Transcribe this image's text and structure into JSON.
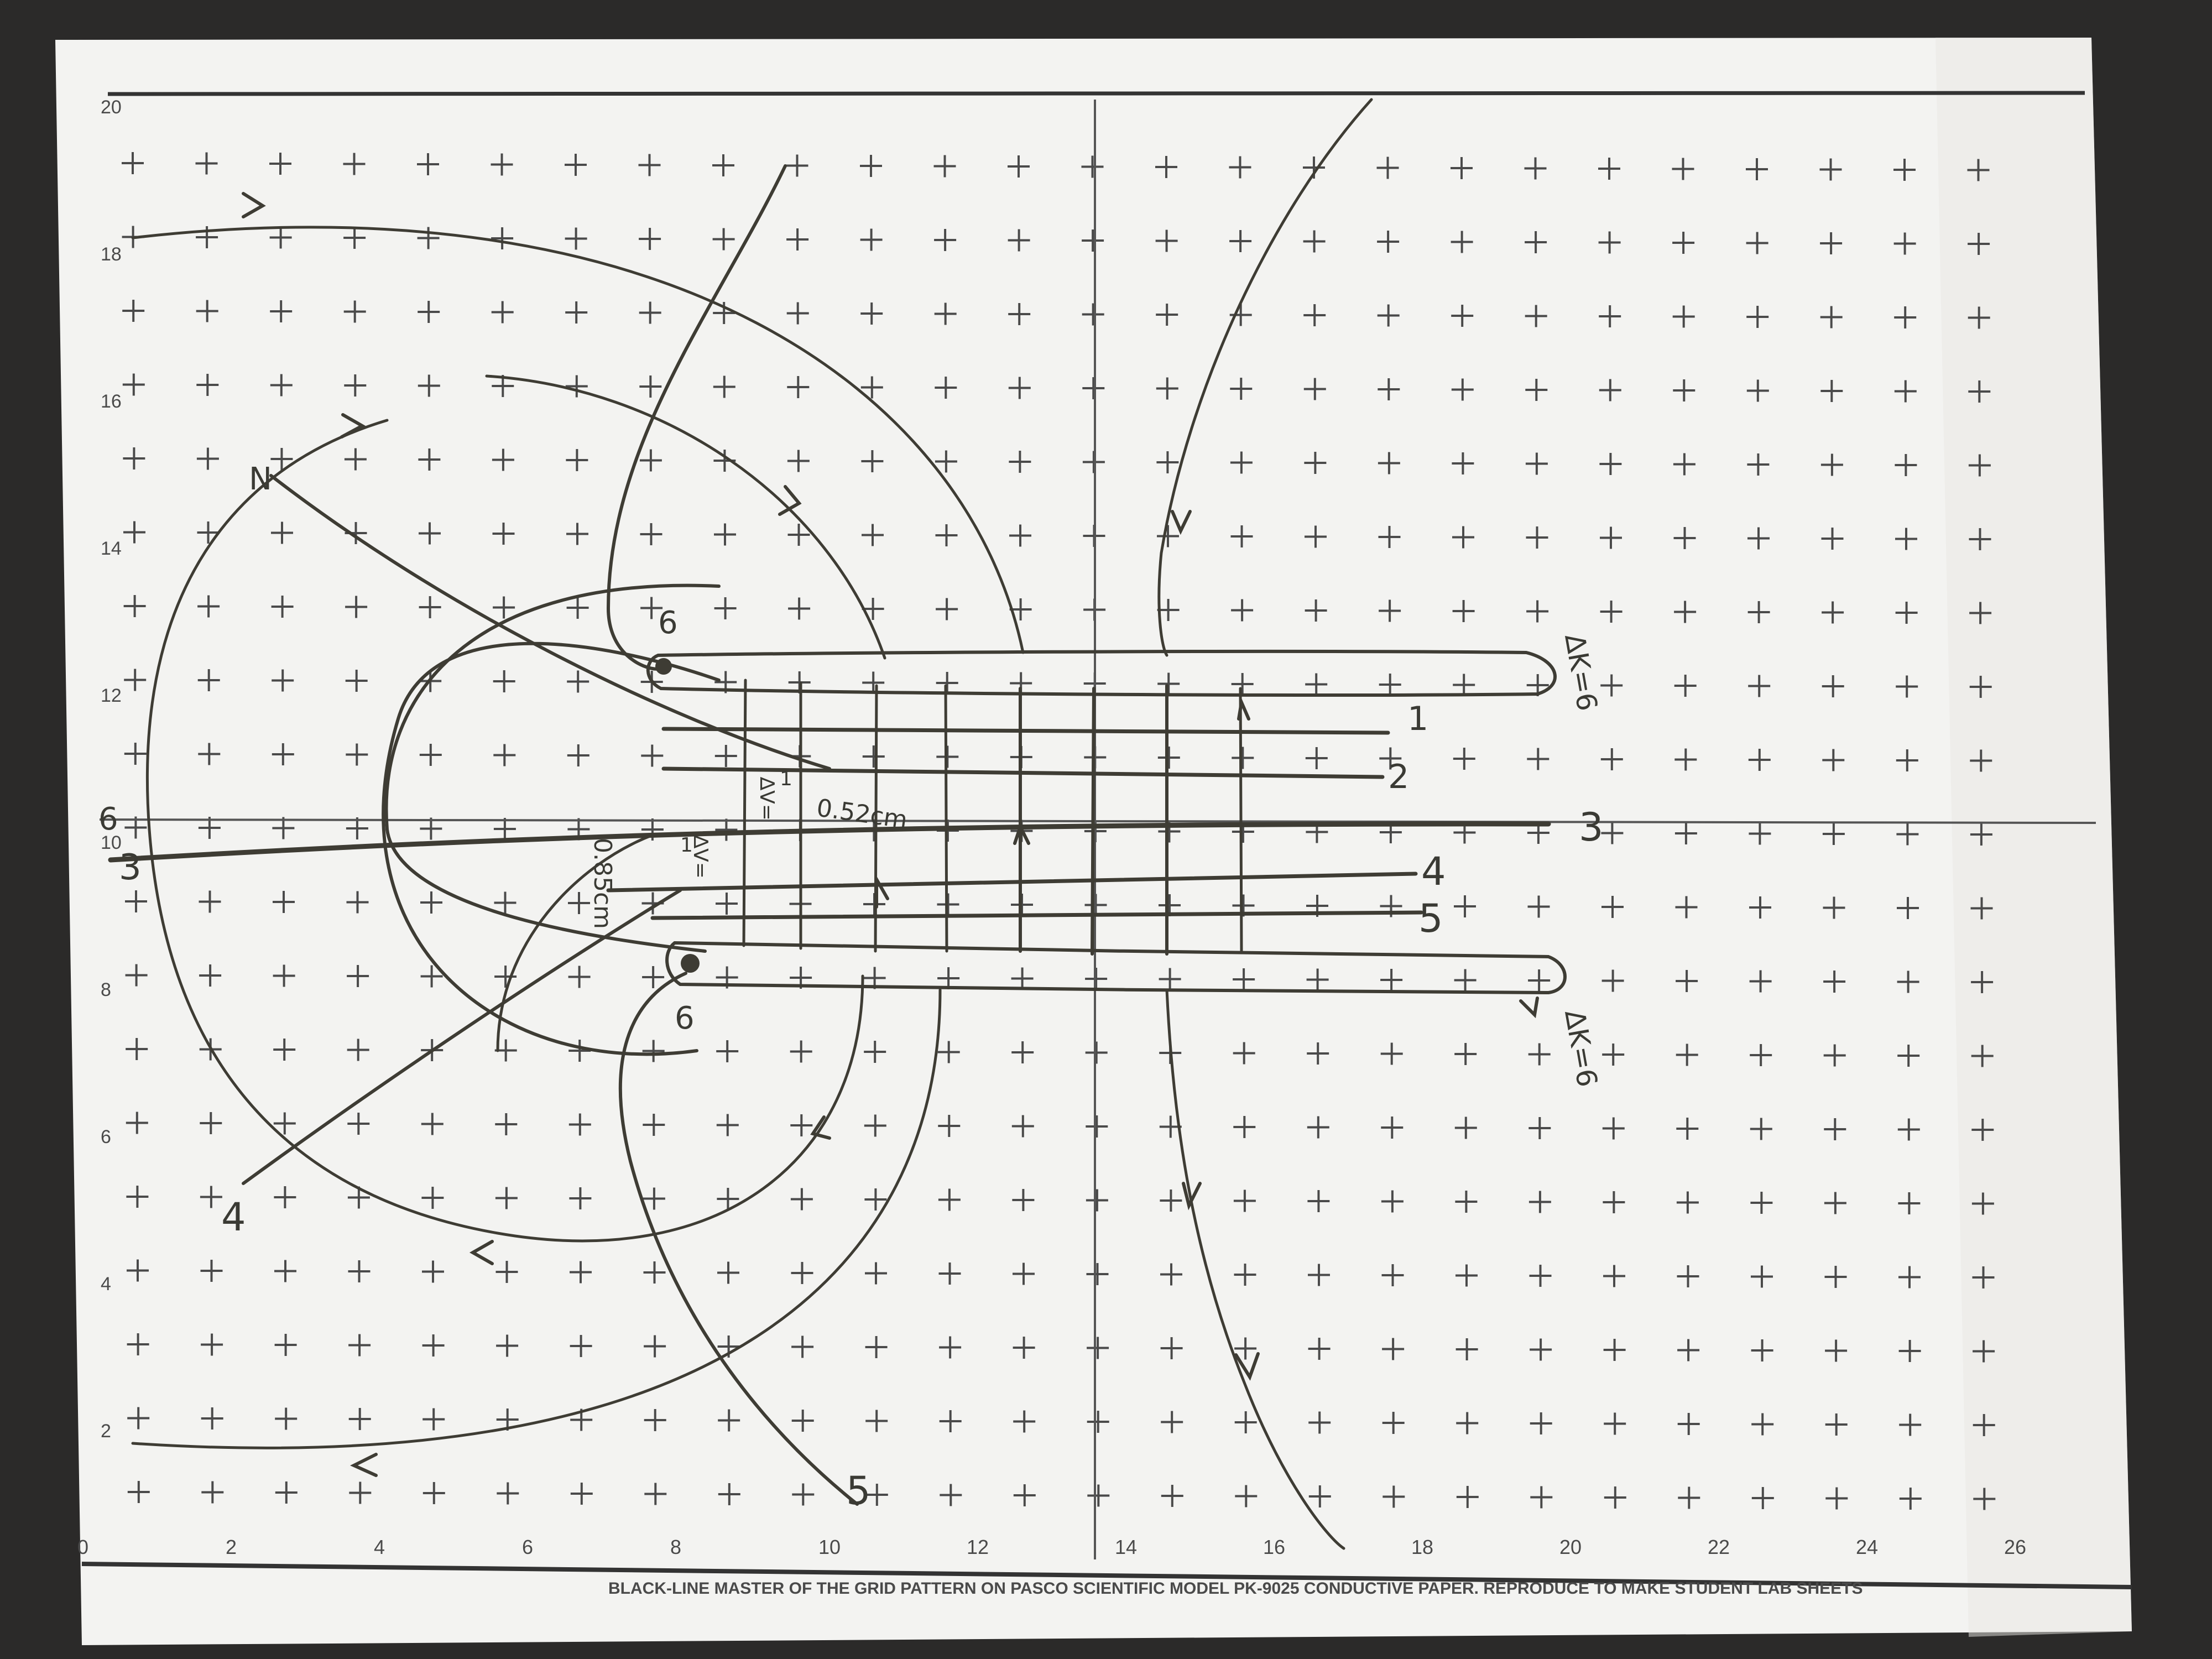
{
  "photo": {
    "subject": "pencil-drawn equipotential and field lines on Pasco grid conductive paper sheet",
    "background_color": "#2b2a29",
    "paper_color": "#f3f3f1",
    "grid_color": "#4a4a4a",
    "pencil_color": "#3e3c34"
  },
  "grid": {
    "y_axis_labels": [
      "20",
      "18",
      "16",
      "14",
      "12",
      "10",
      "8",
      "6",
      "4",
      "2"
    ],
    "x_axis_labels": [
      "0",
      "2",
      "4",
      "6",
      "8",
      "10",
      "12",
      "14",
      "16",
      "18",
      "20",
      "22",
      "24",
      "26"
    ],
    "footer_text": "BLACK-LINE MASTER OF THE GRID PATTERN ON PASCO SCIENTIFIC MODEL PK-9025 CONDUCTIVE PAPER. REPRODUCE TO MAKE STUDENT LAB SHEETS"
  },
  "annotations": {
    "top_k": "∆K=6",
    "bottom_k": "∆K=6",
    "dv_top": "∆V=",
    "dv_top_value": "1",
    "dv_bottom": "∆V=",
    "dv_bottom_value": "1",
    "dist_top": "0.52cm",
    "dist_bottom": "0.85cm",
    "line_1": "1",
    "line_2": "2",
    "line_3": "3",
    "line_4": "4",
    "line_5": "5",
    "left_3": "3",
    "left_6": "6",
    "left_4": "4",
    "left_n": "N",
    "bottom_5": "5",
    "plate_6_top": "6",
    "plate_6_bottom": "6"
  }
}
